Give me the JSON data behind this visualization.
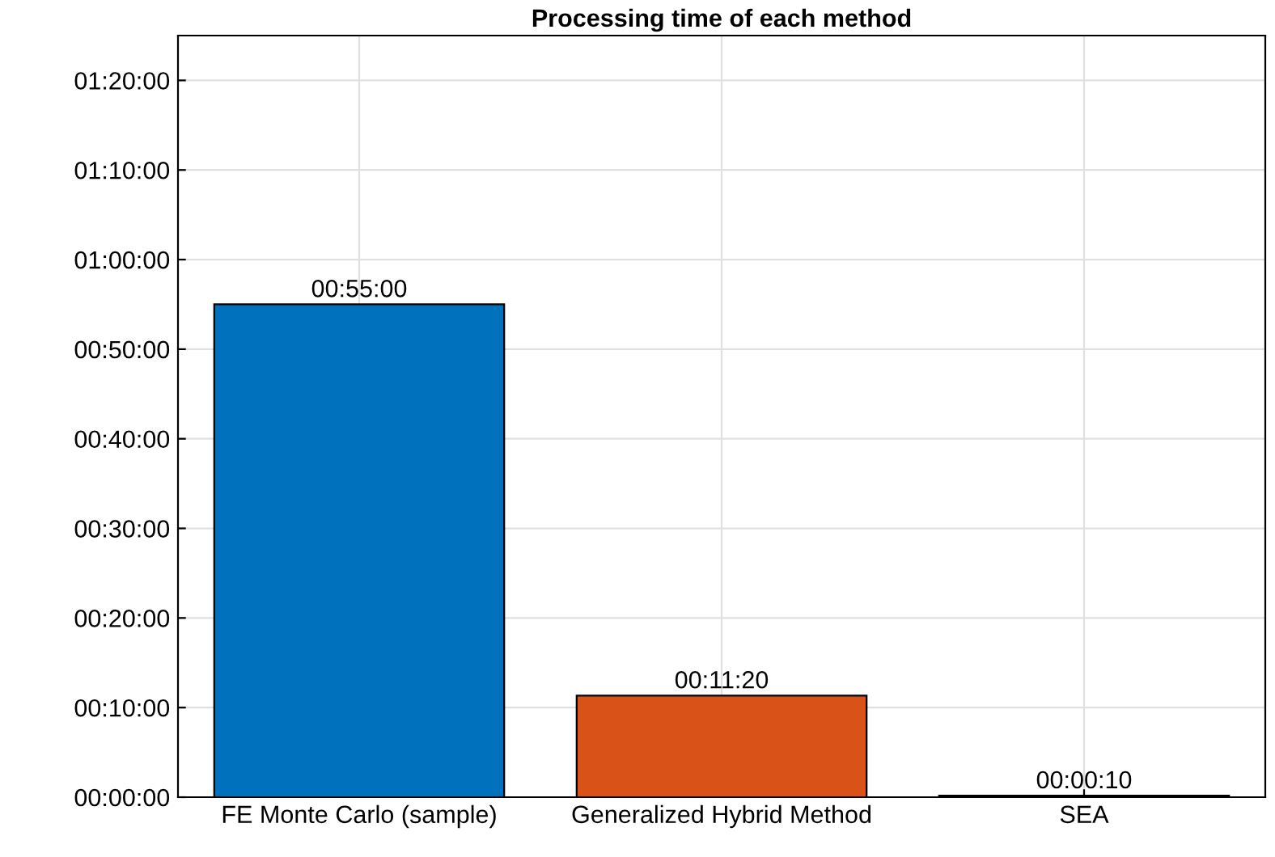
{
  "chart_data": {
    "type": "bar",
    "title": "Processing time of each method",
    "categories": [
      "FE Monte Carlo (sample)",
      "Generalized Hybrid Method",
      "SEA"
    ],
    "values": [
      55,
      11.333,
      0.167
    ],
    "colors": [
      "#0072bd",
      "#d95319",
      "#edb120"
    ],
    "value_labels": [
      "00:55:00",
      "00:11:20",
      "00:00:10"
    ],
    "ylim": [
      0,
      85
    ],
    "yticks": [
      {
        "value": 0,
        "label": "00:00:00"
      },
      {
        "value": 10,
        "label": "00:10:00"
      },
      {
        "value": 20,
        "label": "00:20:00"
      },
      {
        "value": 30,
        "label": "00:30:00"
      },
      {
        "value": 40,
        "label": "00:40:00"
      },
      {
        "value": 50,
        "label": "00:50:00"
      },
      {
        "value": 60,
        "label": "01:00:00"
      },
      {
        "value": 70,
        "label": "01:10:00"
      },
      {
        "value": 80,
        "label": "01:20:00"
      }
    ],
    "grid": true
  }
}
